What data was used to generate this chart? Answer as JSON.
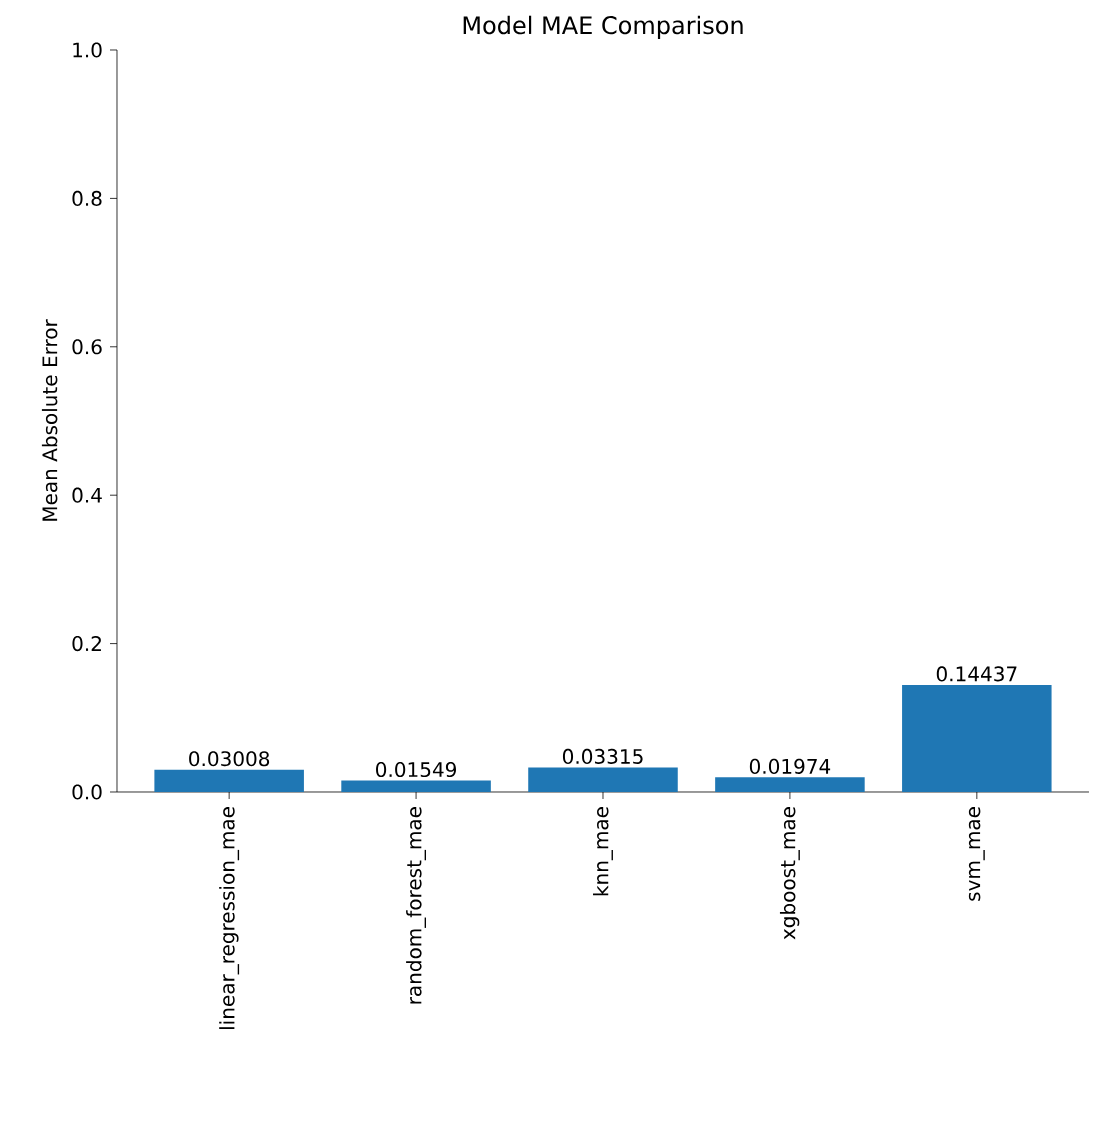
{
  "chart_data": {
    "type": "bar",
    "title": "Model MAE Comparison",
    "ylabel": "Mean Absolute Error",
    "categories": [
      "linear_regression_mae",
      "random_forest_mae",
      "knn_mae",
      "xgboost_mae",
      "svm_mae"
    ],
    "values": [
      0.03008,
      0.01549,
      0.03315,
      0.01974,
      0.14437
    ],
    "color": "#1f77b4",
    "ylim": [
      0,
      1
    ],
    "yticks": [
      {
        "value": 0,
        "label": "0.0"
      },
      0.2,
      0.4,
      0.6,
      0.8,
      {
        "value": 1,
        "label": "1.0"
      }
    ],
    "data_labels": true
  }
}
